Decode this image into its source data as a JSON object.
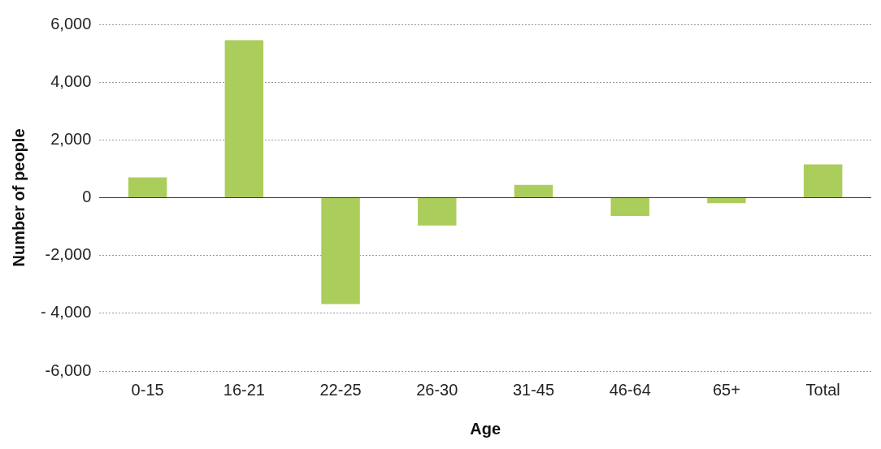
{
  "chart_data": {
    "type": "bar",
    "xlabel": "Age",
    "ylabel": "Number of people",
    "categories": [
      "0-15",
      "16-21",
      "22-25",
      "26-30",
      "31-45",
      "46-64",
      "65+",
      "Total"
    ],
    "values": [
      700,
      5450,
      -3680,
      -960,
      440,
      -630,
      -190,
      1150
    ],
    "color": "#abcd5b",
    "ylim": [
      -6000,
      6000
    ],
    "yticks": [
      {
        "value": -6000,
        "label": "-6,000"
      },
      {
        "value": -4000,
        "label": "- 4,000"
      },
      {
        "value": -2000,
        "label": "-2,000"
      },
      0,
      {
        "value": 2000,
        "label": "2,000"
      },
      {
        "value": 4000,
        "label": "4,000"
      },
      {
        "value": 6000,
        "label": "6,000"
      }
    ],
    "grid": "y",
    "legend": false
  }
}
